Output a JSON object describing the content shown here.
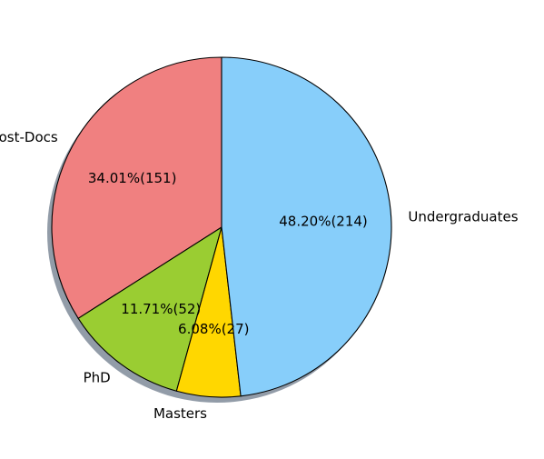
{
  "chart_data": {
    "type": "pie",
    "title": "",
    "start_angle_deg": 90,
    "direction": "counterclockwise",
    "shadow": true,
    "legend": false,
    "slices": [
      {
        "label": "Faculty & Post-Docs",
        "value": 151,
        "pct_label": "34.01%(151)",
        "color": "#f08080"
      },
      {
        "label": "PhD",
        "value": 52,
        "pct_label": "11.71%(52)",
        "color": "#9acd32"
      },
      {
        "label": "Masters",
        "value": 27,
        "pct_label": "6.08%(27)",
        "color": "#ffd700"
      },
      {
        "label": "Undergraduates",
        "value": 214,
        "pct_label": "48.20%(214)",
        "color": "#87cefa"
      }
    ]
  }
}
